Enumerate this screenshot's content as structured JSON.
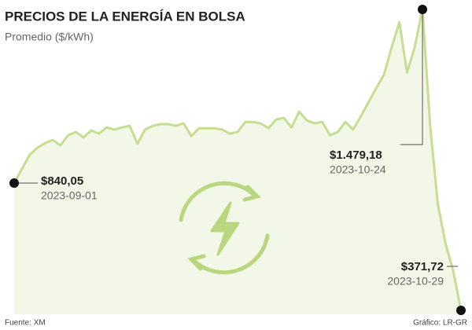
{
  "chart_data": {
    "type": "area",
    "title": "PRECIOS DE LA ENERGÍA EN BOLSA",
    "subtitle": "Promedio ($/kWh)",
    "source": "Fuente: XM",
    "credit": "Gráfico: LR-GR",
    "color": "#c6de92",
    "fill": "#f2f7e7",
    "x": [
      "2023-09-01",
      "2023-09-02",
      "2023-09-03",
      "2023-09-04",
      "2023-09-05",
      "2023-09-06",
      "2023-09-07",
      "2023-09-08",
      "2023-09-09",
      "2023-09-10",
      "2023-09-11",
      "2023-09-12",
      "2023-09-13",
      "2023-09-14",
      "2023-09-15",
      "2023-09-16",
      "2023-09-17",
      "2023-09-18",
      "2023-09-19",
      "2023-09-20",
      "2023-09-21",
      "2023-09-22",
      "2023-09-23",
      "2023-09-24",
      "2023-09-25",
      "2023-09-26",
      "2023-09-27",
      "2023-09-28",
      "2023-09-29",
      "2023-09-30",
      "2023-10-01",
      "2023-10-02",
      "2023-10-03",
      "2023-10-04",
      "2023-10-05",
      "2023-10-06",
      "2023-10-07",
      "2023-10-08",
      "2023-10-09",
      "2023-10-10",
      "2023-10-11",
      "2023-10-12",
      "2023-10-13",
      "2023-10-14",
      "2023-10-15",
      "2023-10-16",
      "2023-10-17",
      "2023-10-18",
      "2023-10-19",
      "2023-10-20",
      "2023-10-21",
      "2023-10-22",
      "2023-10-23",
      "2023-10-24",
      "2023-10-25",
      "2023-10-26",
      "2023-10-27",
      "2023-10-28",
      "2023-10-29"
    ],
    "values": [
      840.05,
      892,
      944,
      970,
      987,
      999,
      979,
      1016,
      1028,
      1008,
      1034,
      1022,
      1045,
      1037,
      1045,
      1051,
      985,
      1037,
      1051,
      1057,
      1057,
      1051,
      1060,
      1013,
      1042,
      1042,
      1042,
      1037,
      1022,
      1028,
      1065,
      1065,
      1060,
      1042,
      1074,
      1080,
      1045,
      1103,
      1071,
      1060,
      1065,
      1016,
      1028,
      1065,
      1037,
      1086,
      1138,
      1190,
      1239,
      1340,
      1432,
      1247,
      1340,
      1479.18,
      1051,
      762,
      617,
      516,
      371.72
    ],
    "value_labels": [
      "$840,05",
      null,
      null,
      null,
      null,
      null,
      null,
      null,
      null,
      null,
      null,
      null,
      null,
      null,
      null,
      null,
      null,
      null,
      null,
      null,
      null,
      null,
      null,
      null,
      null,
      null,
      null,
      null,
      null,
      null,
      null,
      null,
      null,
      null,
      null,
      null,
      null,
      null,
      null,
      null,
      null,
      null,
      null,
      null,
      null,
      null,
      null,
      null,
      null,
      null,
      null,
      null,
      null,
      "$1.479,18",
      null,
      null,
      null,
      null,
      "$371,72"
    ]
  }
}
